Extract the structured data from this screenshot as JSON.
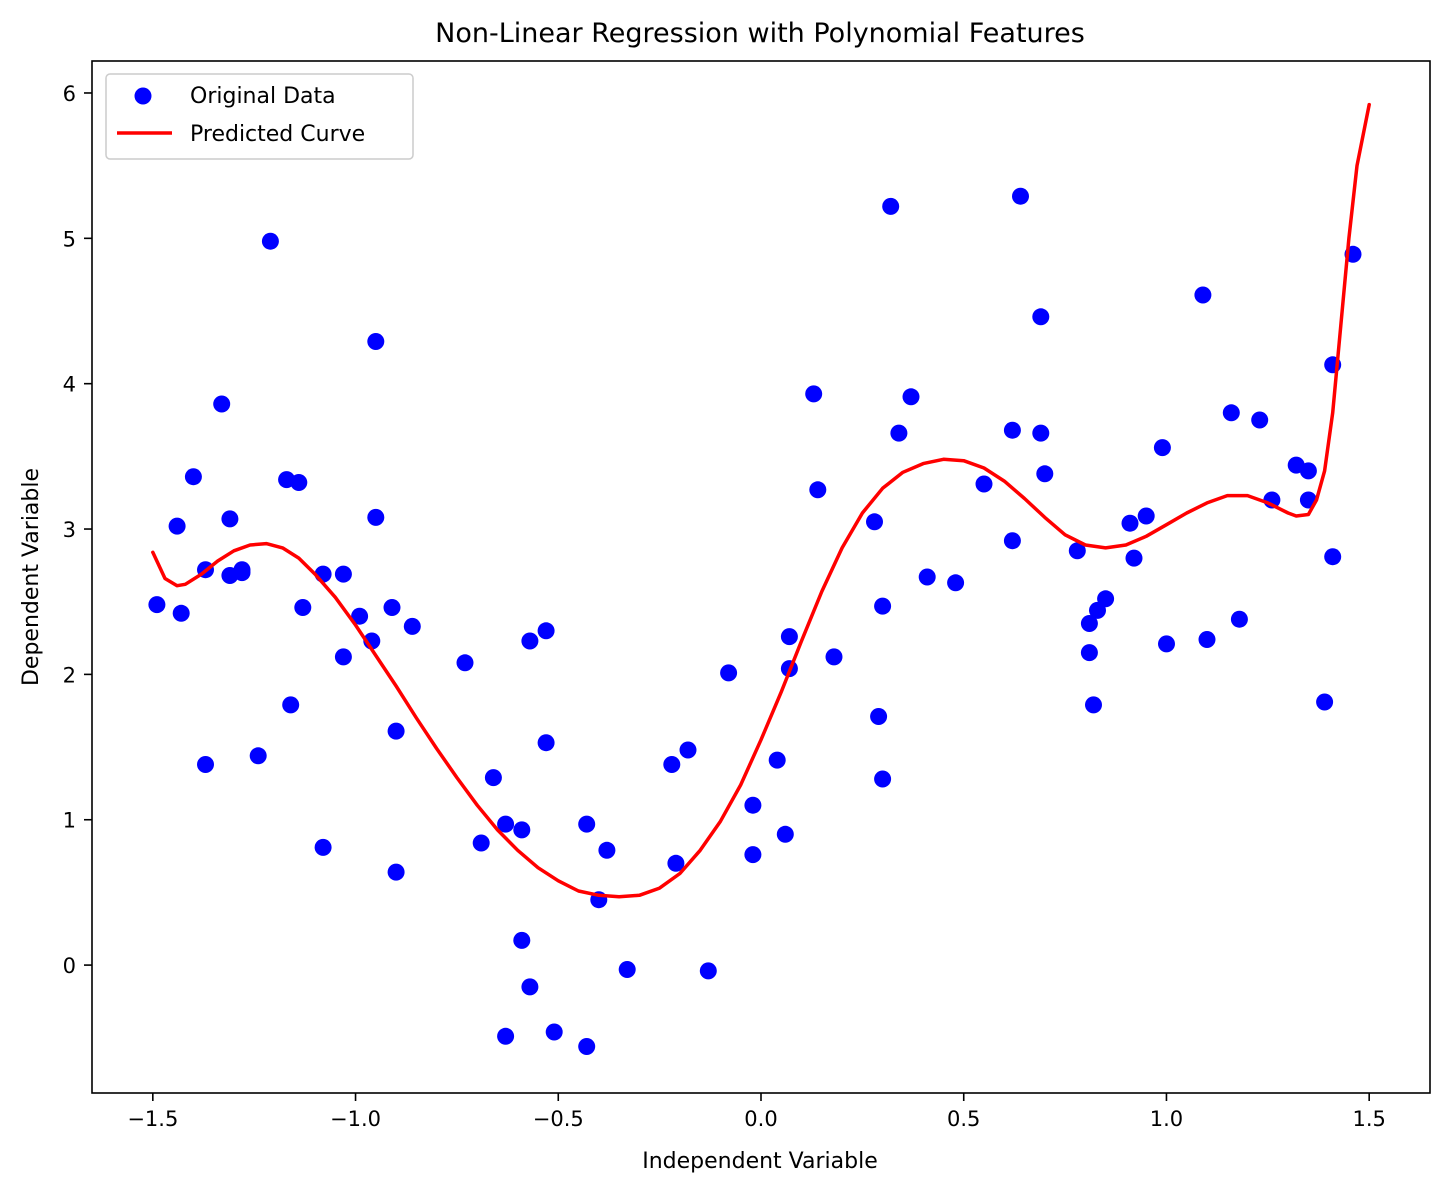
{
  "chart_data": {
    "type": "scatter",
    "title": "Non-Linear Regression with Polynomial Features",
    "xlabel": "Independent Variable",
    "ylabel": "Dependent Variable",
    "xlim": [
      -1.65,
      1.65
    ],
    "ylim": [
      -0.88,
      6.22
    ],
    "xticks": [
      -1.5,
      -1.0,
      -0.5,
      0.0,
      0.5,
      1.0,
      1.5
    ],
    "xtick_labels": [
      "−1.5",
      "−1.0",
      "−0.5",
      "0.0",
      "0.5",
      "1.0",
      "1.5"
    ],
    "yticks": [
      0,
      1,
      2,
      3,
      4,
      5,
      6
    ],
    "ytick_labels": [
      "0",
      "1",
      "2",
      "3",
      "4",
      "5",
      "6"
    ],
    "grid": false,
    "legend_position": "upper-left",
    "legend": [
      {
        "label": "Original Data",
        "kind": "marker",
        "color": "#0000ff"
      },
      {
        "label": "Predicted Curve",
        "kind": "line",
        "color": "#ff0000"
      }
    ],
    "series": [
      {
        "name": "Original Data",
        "type": "scatter",
        "color": "#0000ff",
        "points": [
          [
            -1.49,
            2.48
          ],
          [
            -1.44,
            3.02
          ],
          [
            -1.43,
            2.42
          ],
          [
            -1.4,
            3.36
          ],
          [
            -1.37,
            2.72
          ],
          [
            -1.37,
            1.38
          ],
          [
            -1.33,
            3.86
          ],
          [
            -1.31,
            3.07
          ],
          [
            -1.31,
            2.68
          ],
          [
            -1.28,
            2.72
          ],
          [
            -1.28,
            2.7
          ],
          [
            -1.24,
            1.44
          ],
          [
            -1.21,
            4.98
          ],
          [
            -1.17,
            3.34
          ],
          [
            -1.16,
            1.79
          ],
          [
            -1.14,
            3.32
          ],
          [
            -1.13,
            2.46
          ],
          [
            -1.08,
            2.69
          ],
          [
            -1.08,
            0.81
          ],
          [
            -1.03,
            2.69
          ],
          [
            -1.03,
            2.12
          ],
          [
            -0.99,
            2.4
          ],
          [
            -0.96,
            2.23
          ],
          [
            -0.95,
            3.08
          ],
          [
            -0.95,
            4.29
          ],
          [
            -0.91,
            2.46
          ],
          [
            -0.9,
            1.61
          ],
          [
            -0.9,
            0.64
          ],
          [
            -0.86,
            2.33
          ],
          [
            -0.73,
            2.08
          ],
          [
            -0.69,
            0.84
          ],
          [
            -0.66,
            1.29
          ],
          [
            -0.63,
            0.97
          ],
          [
            -0.63,
            -0.49
          ],
          [
            -0.59,
            0.93
          ],
          [
            -0.59,
            0.17
          ],
          [
            -0.57,
            2.23
          ],
          [
            -0.57,
            -0.15
          ],
          [
            -0.53,
            2.3
          ],
          [
            -0.53,
            1.53
          ],
          [
            -0.51,
            -0.46
          ],
          [
            -0.43,
            0.97
          ],
          [
            -0.43,
            -0.56
          ],
          [
            -0.4,
            0.45
          ],
          [
            -0.38,
            0.79
          ],
          [
            -0.33,
            -0.03
          ],
          [
            -0.22,
            1.38
          ],
          [
            -0.21,
            0.7
          ],
          [
            -0.18,
            1.48
          ],
          [
            -0.13,
            -0.04
          ],
          [
            -0.08,
            2.01
          ],
          [
            -0.02,
            1.1
          ],
          [
            -0.02,
            0.76
          ],
          [
            0.04,
            1.41
          ],
          [
            0.06,
            0.9
          ],
          [
            0.07,
            2.26
          ],
          [
            0.07,
            2.04
          ],
          [
            0.13,
            3.93
          ],
          [
            0.14,
            3.27
          ],
          [
            0.18,
            2.12
          ],
          [
            0.28,
            3.05
          ],
          [
            0.29,
            1.71
          ],
          [
            0.3,
            1.28
          ],
          [
            0.3,
            2.47
          ],
          [
            0.32,
            5.22
          ],
          [
            0.34,
            3.66
          ],
          [
            0.37,
            3.91
          ],
          [
            0.41,
            2.67
          ],
          [
            0.48,
            2.63
          ],
          [
            0.55,
            3.31
          ],
          [
            0.62,
            3.68
          ],
          [
            0.62,
            2.92
          ],
          [
            0.64,
            5.29
          ],
          [
            0.69,
            4.46
          ],
          [
            0.69,
            3.66
          ],
          [
            0.7,
            3.38
          ],
          [
            0.78,
            2.85
          ],
          [
            0.81,
            2.35
          ],
          [
            0.81,
            2.15
          ],
          [
            0.82,
            1.79
          ],
          [
            0.83,
            2.44
          ],
          [
            0.85,
            2.52
          ],
          [
            0.91,
            3.04
          ],
          [
            0.92,
            2.8
          ],
          [
            0.95,
            3.09
          ],
          [
            0.99,
            3.56
          ],
          [
            1.0,
            2.21
          ],
          [
            1.09,
            4.61
          ],
          [
            1.1,
            2.24
          ],
          [
            1.16,
            3.8
          ],
          [
            1.18,
            2.38
          ],
          [
            1.23,
            3.75
          ],
          [
            1.26,
            3.2
          ],
          [
            1.32,
            3.44
          ],
          [
            1.35,
            3.4
          ],
          [
            1.35,
            3.2
          ],
          [
            1.39,
            1.81
          ],
          [
            1.41,
            4.13
          ],
          [
            1.41,
            2.81
          ],
          [
            1.46,
            4.89
          ]
        ]
      },
      {
        "name": "Predicted Curve",
        "type": "line",
        "color": "#ff0000",
        "points": [
          [
            -1.5,
            2.84
          ],
          [
            -1.47,
            2.66
          ],
          [
            -1.44,
            2.61
          ],
          [
            -1.42,
            2.62
          ],
          [
            -1.38,
            2.69
          ],
          [
            -1.34,
            2.78
          ],
          [
            -1.3,
            2.85
          ],
          [
            -1.26,
            2.89
          ],
          [
            -1.22,
            2.9
          ],
          [
            -1.18,
            2.87
          ],
          [
            -1.14,
            2.8
          ],
          [
            -1.1,
            2.69
          ],
          [
            -1.05,
            2.53
          ],
          [
            -1.0,
            2.34
          ],
          [
            -0.95,
            2.13
          ],
          [
            -0.9,
            1.92
          ],
          [
            -0.85,
            1.7
          ],
          [
            -0.8,
            1.49
          ],
          [
            -0.75,
            1.29
          ],
          [
            -0.7,
            1.1
          ],
          [
            -0.65,
            0.93
          ],
          [
            -0.6,
            0.79
          ],
          [
            -0.55,
            0.67
          ],
          [
            -0.5,
            0.58
          ],
          [
            -0.45,
            0.51
          ],
          [
            -0.4,
            0.48
          ],
          [
            -0.35,
            0.47
          ],
          [
            -0.3,
            0.48
          ],
          [
            -0.25,
            0.53
          ],
          [
            -0.2,
            0.63
          ],
          [
            -0.15,
            0.79
          ],
          [
            -0.1,
            0.99
          ],
          [
            -0.05,
            1.24
          ],
          [
            0.0,
            1.55
          ],
          [
            0.05,
            1.88
          ],
          [
            0.1,
            2.23
          ],
          [
            0.15,
            2.57
          ],
          [
            0.2,
            2.87
          ],
          [
            0.25,
            3.11
          ],
          [
            0.3,
            3.28
          ],
          [
            0.35,
            3.39
          ],
          [
            0.4,
            3.45
          ],
          [
            0.45,
            3.48
          ],
          [
            0.5,
            3.47
          ],
          [
            0.55,
            3.42
          ],
          [
            0.6,
            3.33
          ],
          [
            0.65,
            3.21
          ],
          [
            0.7,
            3.08
          ],
          [
            0.75,
            2.96
          ],
          [
            0.8,
            2.89
          ],
          [
            0.85,
            2.87
          ],
          [
            0.9,
            2.89
          ],
          [
            0.95,
            2.95
          ],
          [
            1.0,
            3.03
          ],
          [
            1.05,
            3.11
          ],
          [
            1.1,
            3.18
          ],
          [
            1.15,
            3.23
          ],
          [
            1.2,
            3.23
          ],
          [
            1.25,
            3.18
          ],
          [
            1.3,
            3.11
          ],
          [
            1.32,
            3.09
          ],
          [
            1.35,
            3.1
          ],
          [
            1.37,
            3.2
          ],
          [
            1.39,
            3.4
          ],
          [
            1.41,
            3.8
          ],
          [
            1.43,
            4.4
          ],
          [
            1.45,
            5.0
          ],
          [
            1.47,
            5.5
          ],
          [
            1.5,
            5.92
          ]
        ]
      }
    ]
  }
}
